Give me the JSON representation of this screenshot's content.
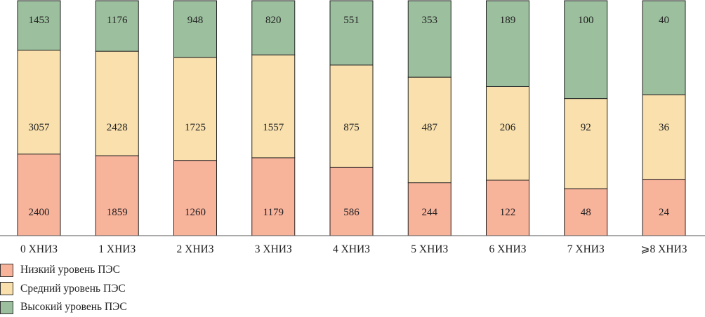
{
  "chart_data": {
    "type": "bar",
    "stacked": "percent",
    "categories": [
      "0 ХНИЗ",
      "1 ХНИЗ",
      "2 ХНИЗ",
      "3 ХНИЗ",
      "4 ХНИЗ",
      "5 ХНИЗ",
      "6 ХНИЗ",
      "7 ХНИЗ",
      "⩾8 ХНИЗ"
    ],
    "series": [
      {
        "name": "Низкий уровень ПЭС",
        "color": "#f8b39b",
        "values": [
          2400,
          1859,
          1260,
          1179,
          586,
          244,
          122,
          48,
          24
        ]
      },
      {
        "name": "Средний уровень ПЭС",
        "color": "#f9e0ad",
        "values": [
          3057,
          2428,
          1725,
          1557,
          875,
          487,
          206,
          92,
          36
        ]
      },
      {
        "name": "Высокий уровень ПЭС",
        "color": "#9cbf9e",
        "values": [
          1453,
          1176,
          948,
          820,
          551,
          353,
          189,
          100,
          40
        ]
      }
    ],
    "ylim": [
      0,
      100
    ],
    "grid": false,
    "legend_position": "bottom-left"
  }
}
